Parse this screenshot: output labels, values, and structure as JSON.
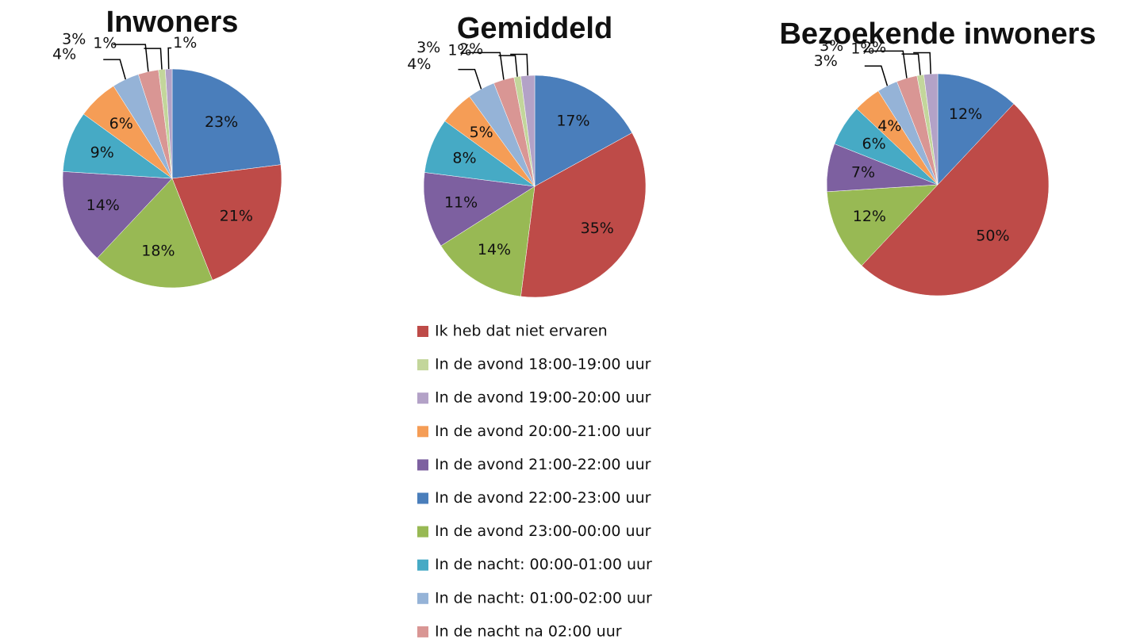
{
  "legend": {
    "labels": [
      "Ik heb dat niet ervaren",
      "In de avond 18:00-19:00 uur",
      "In de avond 19:00-20:00 uur",
      "In de avond 20:00-21:00 uur",
      "In de avond 21:00-22:00 uur",
      "In de avond 22:00-23:00 uur",
      "In de avond 23:00-00:00 uur",
      "In de nacht: 00:00-01:00 uur",
      "In de nacht: 01:00-02:00 uur",
      "In de nacht na 02:00 uur"
    ],
    "colors": [
      "#be4b48",
      "#c3d69b",
      "#b3a2c7",
      "#f59d56",
      "#7d60a0",
      "#4a7ebb",
      "#98b954",
      "#46aac5",
      "#95b3d7",
      "#d99694"
    ]
  },
  "chart_data": [
    {
      "type": "pie",
      "title": "Inwoners",
      "values": [
        21,
        1,
        1,
        6,
        14,
        23,
        18,
        9,
        4,
        3
      ],
      "value_labels": [
        "21%",
        "1%",
        "1%",
        "6%",
        "14%",
        "23%",
        "18%",
        "9%",
        "4%",
        "3%"
      ]
    },
    {
      "type": "pie",
      "title": "Gemiddeld",
      "values": [
        35,
        1,
        2,
        5,
        11,
        17,
        14,
        8,
        4,
        3
      ],
      "value_labels": [
        "35%",
        "1%",
        "2%",
        "5%",
        "11%",
        "17%",
        "14%",
        "8%",
        "4%",
        "3%"
      ]
    },
    {
      "type": "pie",
      "title": "Bezoekende inwoners",
      "values": [
        50,
        1,
        2,
        4,
        7,
        12,
        12,
        6,
        3,
        3
      ],
      "value_labels": [
        "50%",
        "1%",
        "2%",
        "4%",
        "7%",
        "12%",
        "12%",
        "6%",
        "3%",
        "3%"
      ]
    }
  ]
}
